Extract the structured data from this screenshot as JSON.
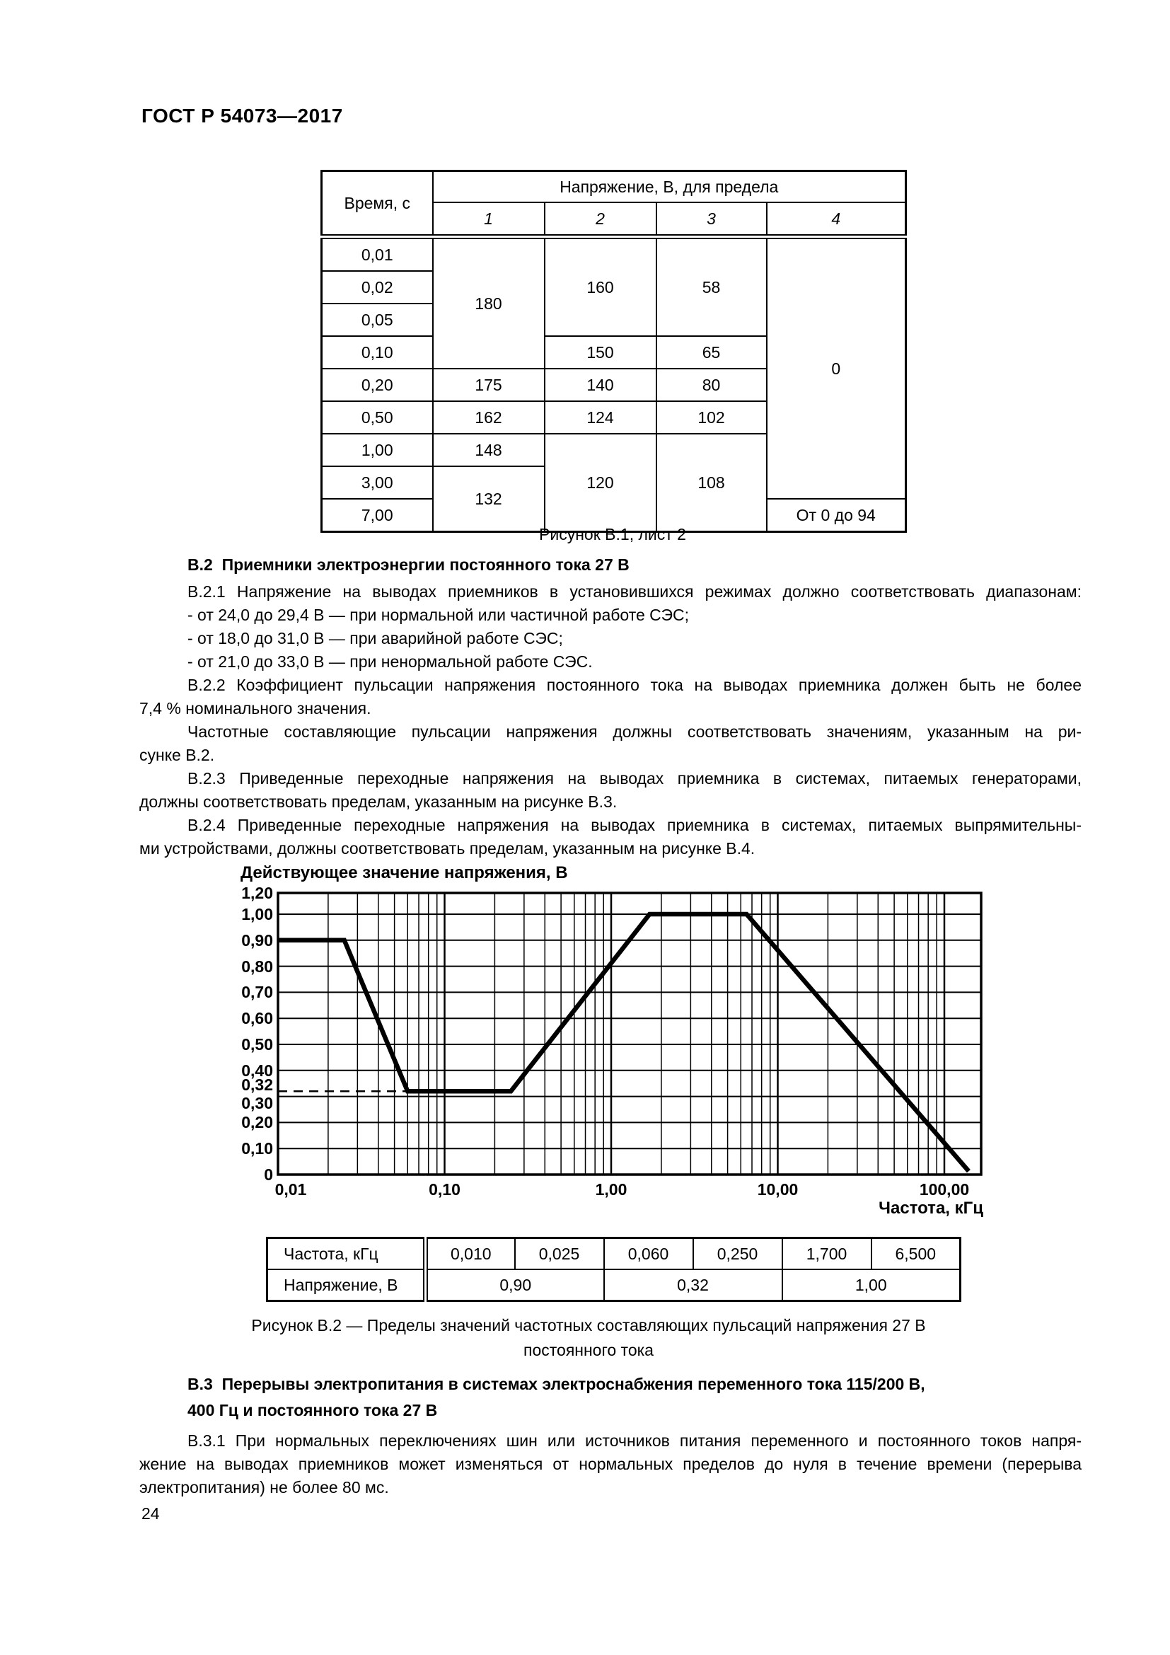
{
  "page": {
    "header": "ГОСТ Р 54073—2017",
    "number": "24"
  },
  "figure_b1": {
    "caption": "Рисунок В.1, лист 2",
    "table": {
      "time_header": "Время, с",
      "voltage_header": "Напряжение, В, для предела",
      "limit_headers": [
        "1",
        "2",
        "3",
        "4"
      ],
      "times": [
        "0,01",
        "0,02",
        "0,05",
        "0,10",
        "0,20",
        "0,50",
        "1,00",
        "3,00",
        "7,00"
      ],
      "limit1": [
        "180",
        "175",
        "162",
        "148",
        "132"
      ],
      "limit2": [
        "160",
        "150",
        "140",
        "124",
        "120"
      ],
      "limit3": [
        "58",
        "65",
        "80",
        "102",
        "108"
      ],
      "limit4": [
        "0",
        "От 0 до 94"
      ]
    }
  },
  "section_b2": {
    "heading": "В.2  Приемники электроэнергии постоянного тока 27 В",
    "p1": "В.2.1 Напряжение на выводах приемников в установившихся режимах должно соответствовать диапазонам:",
    "b1": "- от 24,0 до 29,4 В — при нормальной или частичной работе СЭС;",
    "b2": "- от 18,0 до 31,0 В — при аварийной работе СЭС;",
    "b3": "- от 21,0 до 33,0 В — при ненормальной работе СЭС.",
    "p2_l1": "В.2.2 Коэффициент пульсации напряжения постоянного тока на выводах приемника должен быть не более",
    "p2_l2": "7,4 % номинального значения.",
    "p3_l1": "Частотные составляющие пульсации напряжения должны соответствовать значениям, указанным на ри-",
    "p3_l2": "сунке В.2.",
    "p4_l1": "В.2.3 Приведенные переходные напряжения на выводах приемника в системах, питаемых генераторами,",
    "p4_l2": "должны соответствовать пределам, указанным на рисунке В.3.",
    "p5_l1": "В.2.4 Приведенные переходные напряжения на выводах приемника в системах, питаемых выпрямительны-",
    "p5_l2": "ми устройствами, должны соответствовать пределам, указанным на рисунке В.4."
  },
  "chart_data": {
    "type": "line",
    "title": "",
    "ylabel": "Действующее значение напряжения, В",
    "xlabel": "Частота, кГц",
    "x_scale": "log",
    "xlim": [
      0.01,
      165
    ],
    "ylim": [
      0,
      1.2
    ],
    "grid": {
      "x_minors": "2-9 per decade",
      "y_minors": "none",
      "on": true
    },
    "x_ticks": [
      {
        "label": "0,01",
        "v": 0.01
      },
      {
        "label": "0,10",
        "v": 0.1
      },
      {
        "label": "1,00",
        "v": 1
      },
      {
        "label": "10,00",
        "v": 10
      },
      {
        "label": "100,00",
        "v": 100
      }
    ],
    "y_ticks": [
      {
        "label": "0",
        "v": 0
      },
      {
        "label": "0,10",
        "v": 0.1
      },
      {
        "label": "0,20",
        "v": 0.2
      },
      {
        "label": "0,30",
        "v": 0.3,
        "dy": 9
      },
      {
        "label": "0,32",
        "v": 0.32,
        "dy": -9,
        "dashed": true
      },
      {
        "label": "0,40",
        "v": 0.4
      },
      {
        "label": "0,50",
        "v": 0.5
      },
      {
        "label": "0,60",
        "v": 0.6
      },
      {
        "label": "0,70",
        "v": 0.7
      },
      {
        "label": "0,80",
        "v": 0.8
      },
      {
        "label": "0,90",
        "v": 0.9
      },
      {
        "label": "1,00",
        "v": 1.0
      },
      {
        "label": "1,20",
        "v": 1.2
      }
    ],
    "series": [
      {
        "name": "voltage-ripple-limit",
        "points": [
          [
            0.01,
            0.9
          ],
          [
            0.025,
            0.9
          ],
          [
            0.06,
            0.32
          ],
          [
            0.25,
            0.32
          ],
          [
            1.7,
            1.0
          ],
          [
            6.5,
            1.0
          ],
          [
            140,
            0.013
          ]
        ]
      }
    ],
    "dashed_guide": {
      "y": 0.32,
      "x_from": 0.01,
      "x_to": 0.06
    }
  },
  "figure_b2": {
    "caption_l1": "Рисунок В.2 — Пределы значений частотных составляющих пульсаций напряжения 27 В",
    "caption_l2": "постоянного тока",
    "table": {
      "row1_label": "Частота, кГц",
      "row1_values": [
        "0,010",
        "0,025",
        "0,060",
        "0,250",
        "1,700",
        "6,500"
      ],
      "row2_label": "Напряжение, В",
      "row2_values": [
        "0,90",
        "0,32",
        "1,00"
      ]
    }
  },
  "section_b3": {
    "heading_l1": "В.3  Перерывы электропитания в системах электроснабжения переменного тока 115/200 В,",
    "heading_l2": "400 Гц и постоянного тока 27 В",
    "p1_l1": "В.3.1 При нормальных переключениях шин или источников питания переменного и постоянного токов напря-",
    "p1_l2": "жение на выводах приемников может изменяться от нормальных пределов до нуля в течение времени (перерыва",
    "p1_l3": "электропитания) не более 80 мс."
  }
}
